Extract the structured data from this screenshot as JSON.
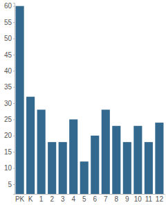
{
  "chart_data": {
    "type": "bar",
    "categories": [
      "PK",
      "K",
      "1",
      "2",
      "3",
      "4",
      "5",
      "6",
      "7",
      "8",
      "9",
      "10",
      "11",
      "12"
    ],
    "values": [
      60,
      32,
      28,
      18,
      18,
      25,
      12,
      20,
      28,
      23,
      18,
      23,
      18,
      24
    ],
    "color": "#34698f",
    "ylim": [
      2,
      61
    ],
    "yticks": [
      5,
      10,
      15,
      20,
      25,
      30,
      35,
      40,
      45,
      50,
      55,
      60
    ],
    "grid": false
  }
}
